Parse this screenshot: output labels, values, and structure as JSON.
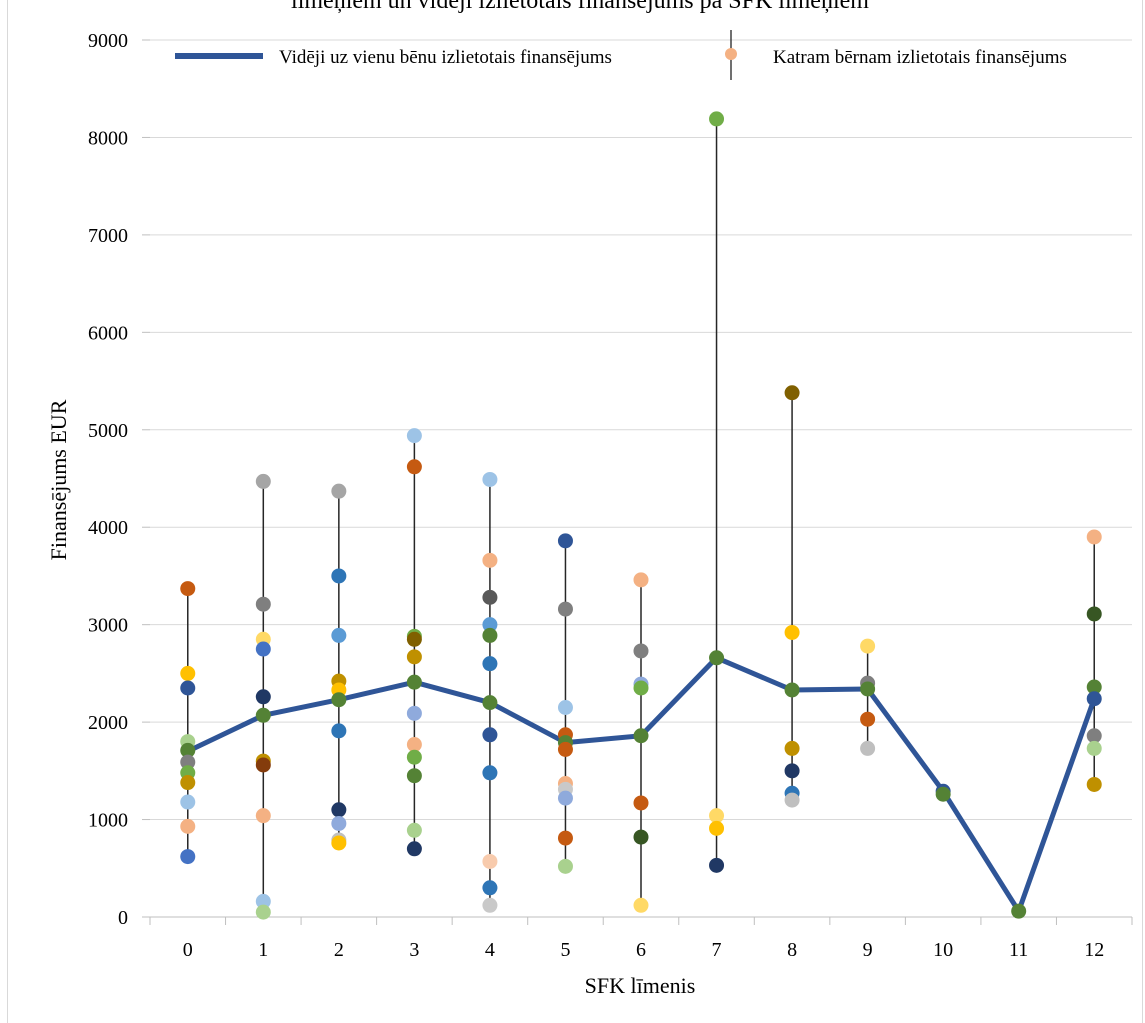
{
  "chart_data": {
    "type": "scatter",
    "title": "līmeņiem  un vidēji izlietotais finansējums pa SFK līmeņiem",
    "xlabel": "SFK līmenis",
    "ylabel": "Finansējums EUR",
    "x_ticks": [
      "0",
      "1",
      "2",
      "3",
      "4",
      "5",
      "6",
      "7",
      "8",
      "9",
      "10",
      "11",
      "12"
    ],
    "y_ticks": [
      "0",
      "1000",
      "2000",
      "3000",
      "4000",
      "5000",
      "6000",
      "7000",
      "8000",
      "9000"
    ],
    "xlim": [
      -0.5,
      12.5
    ],
    "ylim": [
      0,
      9000
    ],
    "grid": "horizontal",
    "legend_placement": "top",
    "series": [
      {
        "name": "Vidēji uz vienu bēnu izlietotais finansējums",
        "kind": "line",
        "color": "#2f5597",
        "x": [
          0,
          1,
          2,
          3,
          4,
          5,
          6,
          7,
          8,
          9,
          10,
          11,
          12
        ],
        "y": [
          1700,
          2070,
          2230,
          2410,
          2200,
          1790,
          1860,
          2660,
          2330,
          2340,
          1290,
          60,
          2240
        ]
      },
      {
        "name": "Katram bērnam izlietotais finansējums",
        "kind": "scatter",
        "legend_color": "#f4b183",
        "points": [
          {
            "x": 0,
            "y": 3370,
            "color": "#c55a11"
          },
          {
            "x": 0,
            "y": 2500,
            "color": "#ffc000"
          },
          {
            "x": 0,
            "y": 2350,
            "color": "#2f5597"
          },
          {
            "x": 0,
            "y": 1800,
            "color": "#a9d18e"
          },
          {
            "x": 0,
            "y": 1710,
            "color": "#548235"
          },
          {
            "x": 0,
            "y": 1590,
            "color": "#7f7f7f"
          },
          {
            "x": 0,
            "y": 1480,
            "color": "#70ad47"
          },
          {
            "x": 0,
            "y": 1380,
            "color": "#bf9000"
          },
          {
            "x": 0,
            "y": 1180,
            "color": "#9dc3e6"
          },
          {
            "x": 0,
            "y": 930,
            "color": "#f4b183"
          },
          {
            "x": 0,
            "y": 620,
            "color": "#4472c4"
          },
          {
            "x": 1,
            "y": 4470,
            "color": "#a5a5a5"
          },
          {
            "x": 1,
            "y": 3210,
            "color": "#7f7f7f"
          },
          {
            "x": 1,
            "y": 2850,
            "color": "#ffd966"
          },
          {
            "x": 1,
            "y": 2750,
            "color": "#4472c4"
          },
          {
            "x": 1,
            "y": 2260,
            "color": "#203864"
          },
          {
            "x": 1,
            "y": 2070,
            "color": "#548235"
          },
          {
            "x": 1,
            "y": 1600,
            "color": "#bf9000"
          },
          {
            "x": 1,
            "y": 1560,
            "color": "#843c0c"
          },
          {
            "x": 1,
            "y": 1040,
            "color": "#f4b183"
          },
          {
            "x": 1,
            "y": 160,
            "color": "#9dc3e6"
          },
          {
            "x": 1,
            "y": 50,
            "color": "#a9d18e"
          },
          {
            "x": 2,
            "y": 4370,
            "color": "#a5a5a5"
          },
          {
            "x": 2,
            "y": 3500,
            "color": "#2e75b6"
          },
          {
            "x": 2,
            "y": 2890,
            "color": "#5b9bd5"
          },
          {
            "x": 2,
            "y": 2420,
            "color": "#bf9000"
          },
          {
            "x": 2,
            "y": 2330,
            "color": "#ffc000"
          },
          {
            "x": 2,
            "y": 2230,
            "color": "#548235"
          },
          {
            "x": 2,
            "y": 1910,
            "color": "#2e75b6"
          },
          {
            "x": 2,
            "y": 1100,
            "color": "#203864"
          },
          {
            "x": 2,
            "y": 960,
            "color": "#8faadc"
          },
          {
            "x": 2,
            "y": 790,
            "color": "#bfbfbf"
          },
          {
            "x": 2,
            "y": 760,
            "color": "#ffc000"
          },
          {
            "x": 3,
            "y": 4940,
            "color": "#9dc3e6"
          },
          {
            "x": 3,
            "y": 4620,
            "color": "#c55a11"
          },
          {
            "x": 3,
            "y": 2880,
            "color": "#70ad47"
          },
          {
            "x": 3,
            "y": 2850,
            "color": "#806000"
          },
          {
            "x": 3,
            "y": 2670,
            "color": "#bf9000"
          },
          {
            "x": 3,
            "y": 2410,
            "color": "#548235"
          },
          {
            "x": 3,
            "y": 2090,
            "color": "#8faadc"
          },
          {
            "x": 3,
            "y": 1770,
            "color": "#f4b183"
          },
          {
            "x": 3,
            "y": 1640,
            "color": "#70ad47"
          },
          {
            "x": 3,
            "y": 1450,
            "color": "#548235"
          },
          {
            "x": 3,
            "y": 890,
            "color": "#a9d18e"
          },
          {
            "x": 3,
            "y": 700,
            "color": "#203864"
          },
          {
            "x": 4,
            "y": 4490,
            "color": "#9dc3e6"
          },
          {
            "x": 4,
            "y": 3660,
            "color": "#f4b183"
          },
          {
            "x": 4,
            "y": 3280,
            "color": "#595959"
          },
          {
            "x": 4,
            "y": 3000,
            "color": "#5b9bd5"
          },
          {
            "x": 4,
            "y": 2890,
            "color": "#548235"
          },
          {
            "x": 4,
            "y": 2600,
            "color": "#2e75b6"
          },
          {
            "x": 4,
            "y": 2200,
            "color": "#548235"
          },
          {
            "x": 4,
            "y": 1870,
            "color": "#2f5597"
          },
          {
            "x": 4,
            "y": 1480,
            "color": "#2e75b6"
          },
          {
            "x": 4,
            "y": 570,
            "color": "#f8cbad"
          },
          {
            "x": 4,
            "y": 300,
            "color": "#2e75b6"
          },
          {
            "x": 4,
            "y": 120,
            "color": "#c9c9c9"
          },
          {
            "x": 5,
            "y": 3860,
            "color": "#2f5597"
          },
          {
            "x": 5,
            "y": 3160,
            "color": "#7f7f7f"
          },
          {
            "x": 5,
            "y": 2150,
            "color": "#9dc3e6"
          },
          {
            "x": 5,
            "y": 1870,
            "color": "#c55a11"
          },
          {
            "x": 5,
            "y": 1790,
            "color": "#548235"
          },
          {
            "x": 5,
            "y": 1720,
            "color": "#c55a11"
          },
          {
            "x": 5,
            "y": 1370,
            "color": "#f4b183"
          },
          {
            "x": 5,
            "y": 1310,
            "color": "#c9c9c9"
          },
          {
            "x": 5,
            "y": 1220,
            "color": "#8faadc"
          },
          {
            "x": 5,
            "y": 810,
            "color": "#c55a11"
          },
          {
            "x": 5,
            "y": 520,
            "color": "#a9d18e"
          },
          {
            "x": 6,
            "y": 3460,
            "color": "#f4b183"
          },
          {
            "x": 6,
            "y": 2730,
            "color": "#7f7f7f"
          },
          {
            "x": 6,
            "y": 2390,
            "color": "#8faadc"
          },
          {
            "x": 6,
            "y": 2350,
            "color": "#70ad47"
          },
          {
            "x": 6,
            "y": 1860,
            "color": "#548235"
          },
          {
            "x": 6,
            "y": 1170,
            "color": "#c55a11"
          },
          {
            "x": 6,
            "y": 820,
            "color": "#375623"
          },
          {
            "x": 6,
            "y": 120,
            "color": "#ffd966"
          },
          {
            "x": 7,
            "y": 8190,
            "color": "#70ad47"
          },
          {
            "x": 7,
            "y": 2660,
            "color": "#548235"
          },
          {
            "x": 7,
            "y": 1040,
            "color": "#ffd966"
          },
          {
            "x": 7,
            "y": 910,
            "color": "#ffc000"
          },
          {
            "x": 7,
            "y": 530,
            "color": "#203864"
          },
          {
            "x": 8,
            "y": 5380,
            "color": "#806000"
          },
          {
            "x": 8,
            "y": 2920,
            "color": "#ffc000"
          },
          {
            "x": 8,
            "y": 2330,
            "color": "#548235"
          },
          {
            "x": 8,
            "y": 1730,
            "color": "#bf9000"
          },
          {
            "x": 8,
            "y": 1500,
            "color": "#203864"
          },
          {
            "x": 8,
            "y": 1270,
            "color": "#2e75b6"
          },
          {
            "x": 8,
            "y": 1200,
            "color": "#bfbfbf"
          },
          {
            "x": 9,
            "y": 2780,
            "color": "#ffd966"
          },
          {
            "x": 9,
            "y": 2400,
            "color": "#7f7f7f"
          },
          {
            "x": 9,
            "y": 2340,
            "color": "#548235"
          },
          {
            "x": 9,
            "y": 2030,
            "color": "#c55a11"
          },
          {
            "x": 9,
            "y": 1730,
            "color": "#bfbfbf"
          },
          {
            "x": 10,
            "y": 1290,
            "color": "#2f5597"
          },
          {
            "x": 10,
            "y": 1260,
            "color": "#548235"
          },
          {
            "x": 11,
            "y": 60,
            "color": "#548235"
          },
          {
            "x": 12,
            "y": 3900,
            "color": "#f4b183"
          },
          {
            "x": 12,
            "y": 3110,
            "color": "#375623"
          },
          {
            "x": 12,
            "y": 2360,
            "color": "#548235"
          },
          {
            "x": 12,
            "y": 2240,
            "color": "#2f5597"
          },
          {
            "x": 12,
            "y": 1860,
            "color": "#7f7f7f"
          },
          {
            "x": 12,
            "y": 1730,
            "color": "#a9d18e"
          },
          {
            "x": 12,
            "y": 1360,
            "color": "#bf9000"
          }
        ]
      }
    ]
  }
}
